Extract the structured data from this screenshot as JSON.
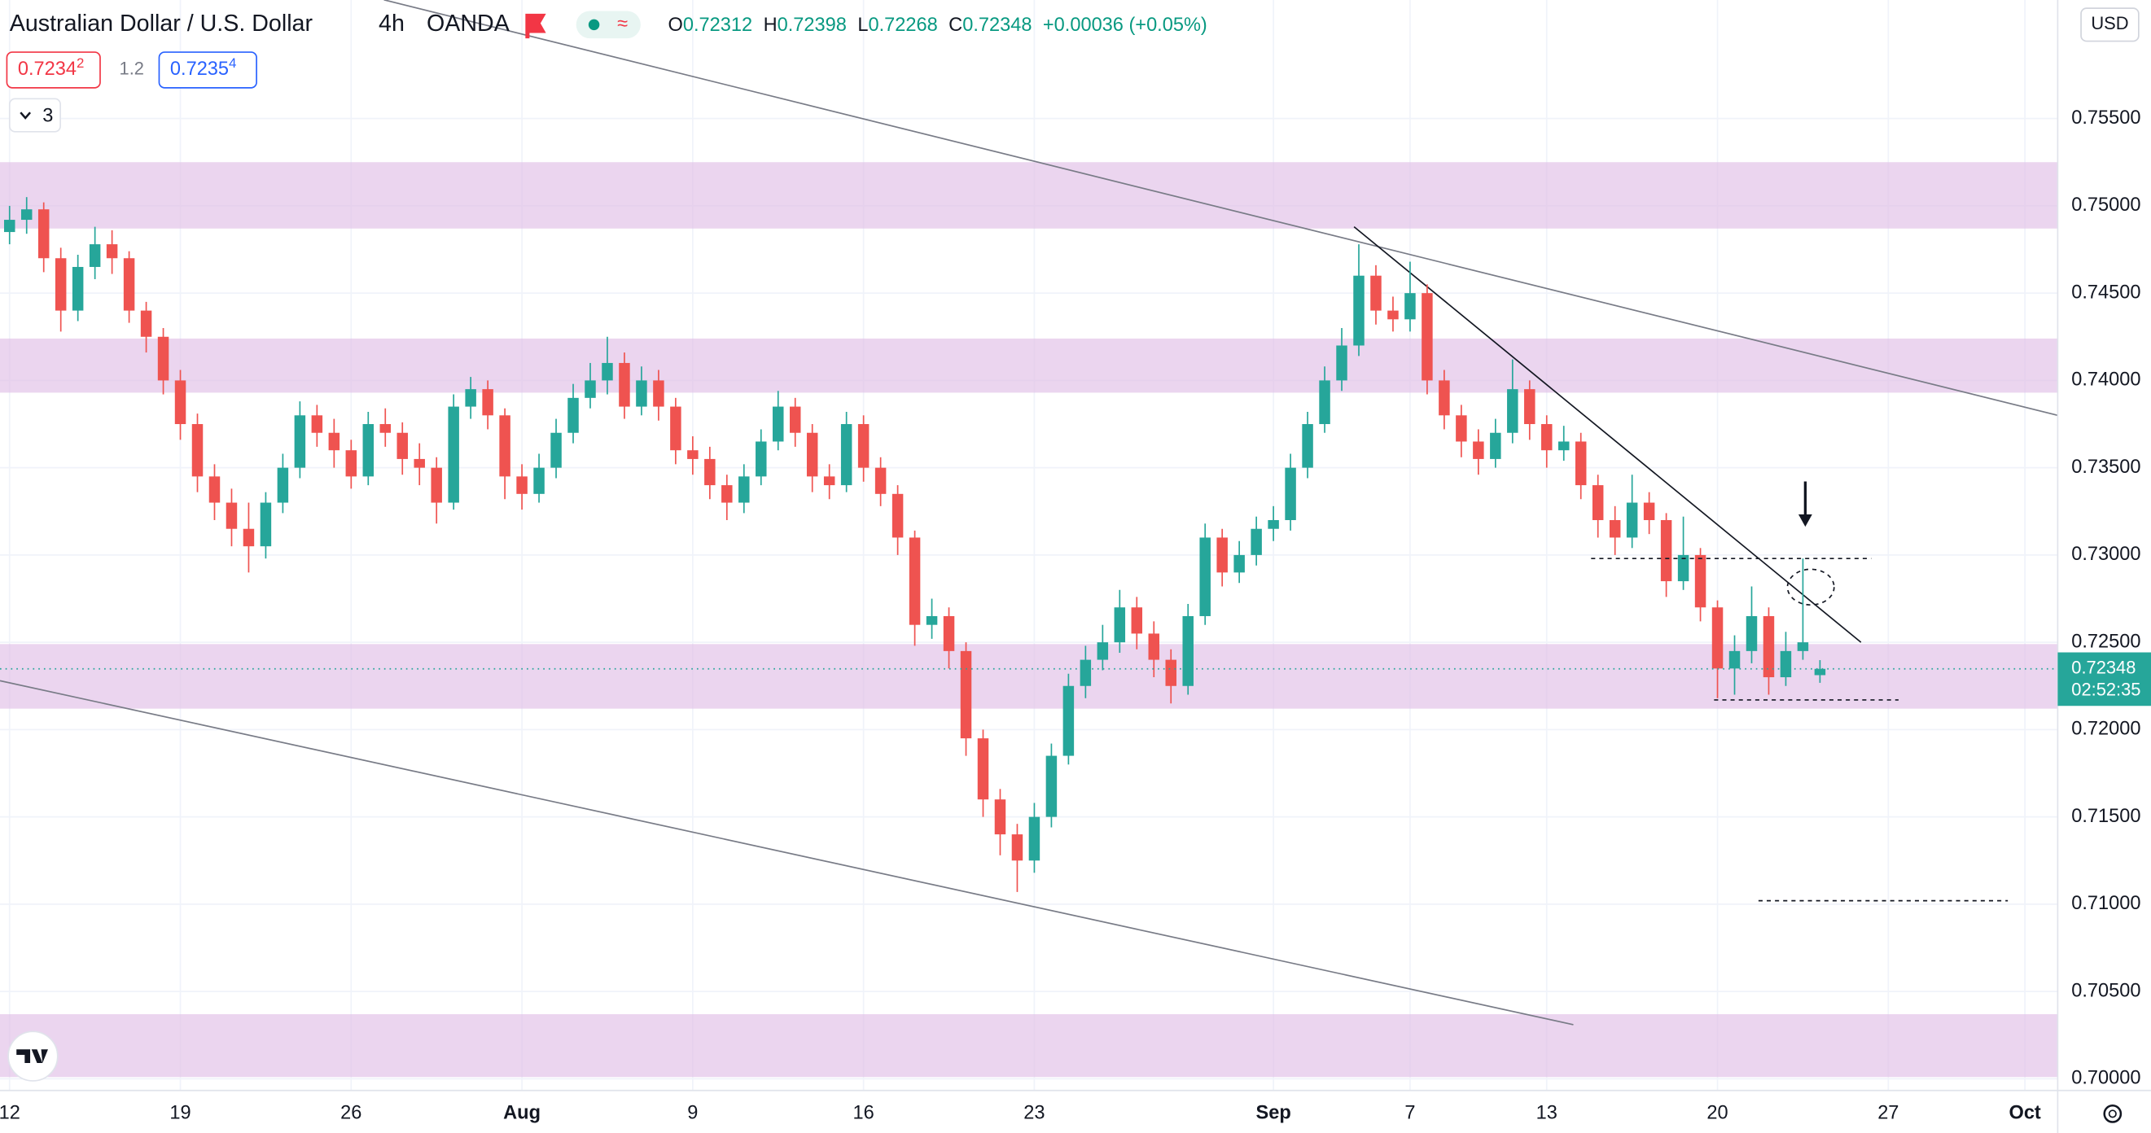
{
  "header": {
    "title": "Australian Dollar / U.S. Dollar",
    "interval": "4h",
    "source": "OANDA",
    "quote": [
      {
        "k": "O",
        "v": "0.72312"
      },
      {
        "k": "H",
        "v": "0.72398"
      },
      {
        "k": "L",
        "v": "0.72268"
      },
      {
        "k": "C",
        "v": "0.72348"
      }
    ],
    "change": "+0.00036 (+0.05%)",
    "sell": {
      "main": "0.7234",
      "pip": "2"
    },
    "spread": "1.2",
    "buy": {
      "main": "0.7235",
      "pip": "4"
    },
    "indicators": "3",
    "currency": "USD",
    "countdown": "02:52:35"
  },
  "chart_data": {
    "type": "candlestick",
    "up_color": "#26a69a",
    "down_color": "#ef5350",
    "grid": true,
    "xlim": [
      -0.28,
      59.96
    ],
    "ylim": [
      0.69933,
      0.76179
    ],
    "xticks": [
      {
        "value": 0,
        "label": "12"
      },
      {
        "value": 5,
        "label": "19"
      },
      {
        "value": 10,
        "label": "26"
      },
      {
        "value": 15,
        "label": "Aug"
      },
      {
        "value": 20,
        "label": "9"
      },
      {
        "value": 25,
        "label": "16"
      },
      {
        "value": 30,
        "label": "23"
      },
      {
        "value": 37,
        "label": "Sep"
      },
      {
        "value": 41,
        "label": "7"
      },
      {
        "value": 45,
        "label": "13"
      },
      {
        "value": 50,
        "label": "20"
      },
      {
        "value": 55,
        "label": "27"
      },
      {
        "value": 59,
        "label": "Oct"
      }
    ],
    "yticks": [
      {
        "value": 0.755,
        "label": "0.75500"
      },
      {
        "value": 0.75,
        "label": "0.75000"
      },
      {
        "value": 0.745,
        "label": "0.74500"
      },
      {
        "value": 0.74,
        "label": "0.74000"
      },
      {
        "value": 0.735,
        "label": "0.73500"
      },
      {
        "value": 0.73,
        "label": "0.73000"
      },
      {
        "value": 0.725,
        "label": "0.72500"
      },
      {
        "value": 0.72,
        "label": "0.72000"
      },
      {
        "value": 0.715,
        "label": "0.71500"
      },
      {
        "value": 0.71,
        "label": "0.71000"
      },
      {
        "value": 0.705,
        "label": "0.70500"
      },
      {
        "value": 0.7,
        "label": "0.70000"
      }
    ],
    "x": [
      0,
      0.5,
      1,
      1.5,
      2,
      2.5,
      3,
      3.5,
      4,
      4.5,
      5,
      5.5,
      6,
      6.5,
      7,
      7.5,
      8,
      8.5,
      9,
      9.5,
      10,
      10.5,
      11,
      11.5,
      12,
      12.5,
      13,
      13.5,
      14,
      14.5,
      15,
      15.5,
      16,
      16.5,
      17,
      17.5,
      18,
      18.5,
      19,
      19.5,
      20,
      20.5,
      21,
      21.5,
      22,
      22.5,
      23,
      23.5,
      24,
      24.5,
      25,
      25.5,
      26,
      26.5,
      27,
      27.5,
      28,
      28.5,
      29,
      29.5,
      30,
      30.5,
      31,
      31.5,
      32,
      32.5,
      33,
      33.5,
      34,
      34.5,
      35,
      35.5,
      36,
      36.5,
      37,
      37.5,
      38,
      38.5,
      39,
      39.5,
      40,
      40.5,
      41,
      41.5,
      42,
      42.5,
      43,
      43.5,
      44,
      44.5,
      45,
      45.5,
      46,
      46.5,
      47,
      47.5,
      48,
      48.5,
      49,
      49.5,
      50,
      50.5,
      51,
      51.5,
      52,
      52.5,
      53
    ],
    "ohlc": [
      [
        0.7485,
        0.75,
        0.7478,
        0.7492
      ],
      [
        0.7492,
        0.7505,
        0.7484,
        0.7498
      ],
      [
        0.7498,
        0.7502,
        0.7462,
        0.747
      ],
      [
        0.747,
        0.7476,
        0.7428,
        0.744
      ],
      [
        0.744,
        0.7472,
        0.7434,
        0.7465
      ],
      [
        0.7465,
        0.7488,
        0.7458,
        0.7478
      ],
      [
        0.7478,
        0.7486,
        0.7461,
        0.747
      ],
      [
        0.747,
        0.7474,
        0.7433,
        0.744
      ],
      [
        0.744,
        0.7445,
        0.7416,
        0.7425
      ],
      [
        0.7425,
        0.743,
        0.7392,
        0.74
      ],
      [
        0.74,
        0.7406,
        0.7366,
        0.7375
      ],
      [
        0.7375,
        0.7381,
        0.7336,
        0.7345
      ],
      [
        0.7345,
        0.7352,
        0.732,
        0.733
      ],
      [
        0.733,
        0.7338,
        0.7305,
        0.7315
      ],
      [
        0.7315,
        0.733,
        0.729,
        0.7305
      ],
      [
        0.7305,
        0.7336,
        0.7298,
        0.733
      ],
      [
        0.733,
        0.7358,
        0.7324,
        0.735
      ],
      [
        0.735,
        0.7388,
        0.7344,
        0.738
      ],
      [
        0.738,
        0.7386,
        0.7362,
        0.737
      ],
      [
        0.737,
        0.7378,
        0.735,
        0.736
      ],
      [
        0.736,
        0.7366,
        0.7338,
        0.7345
      ],
      [
        0.7345,
        0.7382,
        0.734,
        0.7375
      ],
      [
        0.7375,
        0.7384,
        0.7362,
        0.737
      ],
      [
        0.737,
        0.7376,
        0.7346,
        0.7355
      ],
      [
        0.7355,
        0.7364,
        0.734,
        0.735
      ],
      [
        0.735,
        0.7356,
        0.7318,
        0.733
      ],
      [
        0.733,
        0.7392,
        0.7326,
        0.7385
      ],
      [
        0.7385,
        0.7402,
        0.7378,
        0.7395
      ],
      [
        0.7395,
        0.74,
        0.7372,
        0.738
      ],
      [
        0.738,
        0.7384,
        0.7332,
        0.7345
      ],
      [
        0.7345,
        0.7352,
        0.7326,
        0.7335
      ],
      [
        0.7335,
        0.7358,
        0.733,
        0.735
      ],
      [
        0.735,
        0.7378,
        0.7344,
        0.737
      ],
      [
        0.737,
        0.7398,
        0.7364,
        0.739
      ],
      [
        0.739,
        0.741,
        0.7384,
        0.74
      ],
      [
        0.74,
        0.7425,
        0.7392,
        0.741
      ],
      [
        0.741,
        0.7416,
        0.7378,
        0.7385
      ],
      [
        0.7385,
        0.7408,
        0.738,
        0.74
      ],
      [
        0.74,
        0.7406,
        0.7377,
        0.7385
      ],
      [
        0.7385,
        0.739,
        0.7352,
        0.736
      ],
      [
        0.736,
        0.7368,
        0.7346,
        0.7355
      ],
      [
        0.7355,
        0.7362,
        0.7332,
        0.734
      ],
      [
        0.734,
        0.7346,
        0.732,
        0.733
      ],
      [
        0.733,
        0.7352,
        0.7324,
        0.7345
      ],
      [
        0.7345,
        0.7372,
        0.734,
        0.7365
      ],
      [
        0.7365,
        0.7394,
        0.736,
        0.7385
      ],
      [
        0.7385,
        0.739,
        0.7362,
        0.737
      ],
      [
        0.737,
        0.7375,
        0.7336,
        0.7345
      ],
      [
        0.7345,
        0.7352,
        0.7332,
        0.734
      ],
      [
        0.734,
        0.7382,
        0.7336,
        0.7375
      ],
      [
        0.7375,
        0.738,
        0.7342,
        0.735
      ],
      [
        0.735,
        0.7356,
        0.7328,
        0.7335
      ],
      [
        0.7335,
        0.734,
        0.73,
        0.731
      ],
      [
        0.731,
        0.7314,
        0.7248,
        0.726
      ],
      [
        0.726,
        0.7275,
        0.7252,
        0.7265
      ],
      [
        0.7265,
        0.727,
        0.7235,
        0.7245
      ],
      [
        0.7245,
        0.725,
        0.7185,
        0.7195
      ],
      [
        0.7195,
        0.72,
        0.715,
        0.716
      ],
      [
        0.716,
        0.7166,
        0.7128,
        0.714
      ],
      [
        0.714,
        0.7146,
        0.7107,
        0.7125
      ],
      [
        0.7125,
        0.7158,
        0.7118,
        0.715
      ],
      [
        0.715,
        0.7192,
        0.7144,
        0.7185
      ],
      [
        0.7185,
        0.7232,
        0.718,
        0.7225
      ],
      [
        0.7225,
        0.7248,
        0.7218,
        0.724
      ],
      [
        0.724,
        0.726,
        0.7234,
        0.725
      ],
      [
        0.725,
        0.728,
        0.7244,
        0.727
      ],
      [
        0.727,
        0.7276,
        0.7246,
        0.7255
      ],
      [
        0.7255,
        0.7262,
        0.723,
        0.724
      ],
      [
        0.724,
        0.7246,
        0.7215,
        0.7225
      ],
      [
        0.7225,
        0.7272,
        0.722,
        0.7265
      ],
      [
        0.7265,
        0.7318,
        0.726,
        0.731
      ],
      [
        0.731,
        0.7315,
        0.7282,
        0.729
      ],
      [
        0.729,
        0.7308,
        0.7284,
        0.73
      ],
      [
        0.73,
        0.7322,
        0.7294,
        0.7315
      ],
      [
        0.7315,
        0.7328,
        0.7308,
        0.732
      ],
      [
        0.732,
        0.7358,
        0.7314,
        0.735
      ],
      [
        0.735,
        0.7382,
        0.7344,
        0.7375
      ],
      [
        0.7375,
        0.7408,
        0.737,
        0.74
      ],
      [
        0.74,
        0.743,
        0.7394,
        0.742
      ],
      [
        0.742,
        0.7478,
        0.7414,
        0.746
      ],
      [
        0.746,
        0.7466,
        0.7432,
        0.744
      ],
      [
        0.744,
        0.7448,
        0.7428,
        0.7435
      ],
      [
        0.7435,
        0.7468,
        0.7428,
        0.745
      ],
      [
        0.745,
        0.7455,
        0.7392,
        0.74
      ],
      [
        0.74,
        0.7406,
        0.7372,
        0.738
      ],
      [
        0.738,
        0.7386,
        0.7356,
        0.7365
      ],
      [
        0.7365,
        0.7372,
        0.7346,
        0.7355
      ],
      [
        0.7355,
        0.7378,
        0.735,
        0.737
      ],
      [
        0.737,
        0.7412,
        0.7364,
        0.7395
      ],
      [
        0.7395,
        0.74,
        0.7366,
        0.7375
      ],
      [
        0.7375,
        0.738,
        0.735,
        0.736
      ],
      [
        0.736,
        0.7374,
        0.7354,
        0.7365
      ],
      [
        0.7365,
        0.737,
        0.7332,
        0.734
      ],
      [
        0.734,
        0.7346,
        0.731,
        0.732
      ],
      [
        0.732,
        0.7328,
        0.73,
        0.731
      ],
      [
        0.731,
        0.7346,
        0.7304,
        0.733
      ],
      [
        0.733,
        0.7336,
        0.7312,
        0.732
      ],
      [
        0.732,
        0.7324,
        0.7276,
        0.7285
      ],
      [
        0.7285,
        0.7322,
        0.728,
        0.73
      ],
      [
        0.73,
        0.7304,
        0.7262,
        0.727
      ],
      [
        0.727,
        0.7274,
        0.7218,
        0.7235
      ],
      [
        0.7235,
        0.7254,
        0.722,
        0.7245
      ],
      [
        0.7245,
        0.7282,
        0.7238,
        0.7265
      ],
      [
        0.7265,
        0.727,
        0.722,
        0.723
      ],
      [
        0.723,
        0.7256,
        0.7225,
        0.7245
      ],
      [
        0.7245,
        0.7298,
        0.724,
        0.725
      ],
      [
        0.72312,
        0.72398,
        0.72268,
        0.72348
      ]
    ],
    "zones": [
      [
        0.7487,
        0.7525
      ],
      [
        0.7393,
        0.7424
      ],
      [
        0.7212,
        0.7249
      ],
      [
        0.7001,
        0.7037
      ]
    ],
    "zone_color": "#e1bee7",
    "trendlines": [
      [
        10.96,
        0.7618,
        59.96,
        0.738
      ],
      [
        -0.28,
        0.7228,
        45.78,
        0.7031
      ],
      [
        39.36,
        0.7488,
        54.2,
        0.725
      ]
    ],
    "levels": [
      {
        "x": [
          46.3,
          54.5
        ],
        "price": 0.7298
      },
      {
        "x": [
          49.9,
          55.3
        ],
        "price": 0.7217
      },
      {
        "x": [
          51.2,
          58.5
        ],
        "price": 0.7102
      }
    ],
    "last_price": 0.72348
  }
}
